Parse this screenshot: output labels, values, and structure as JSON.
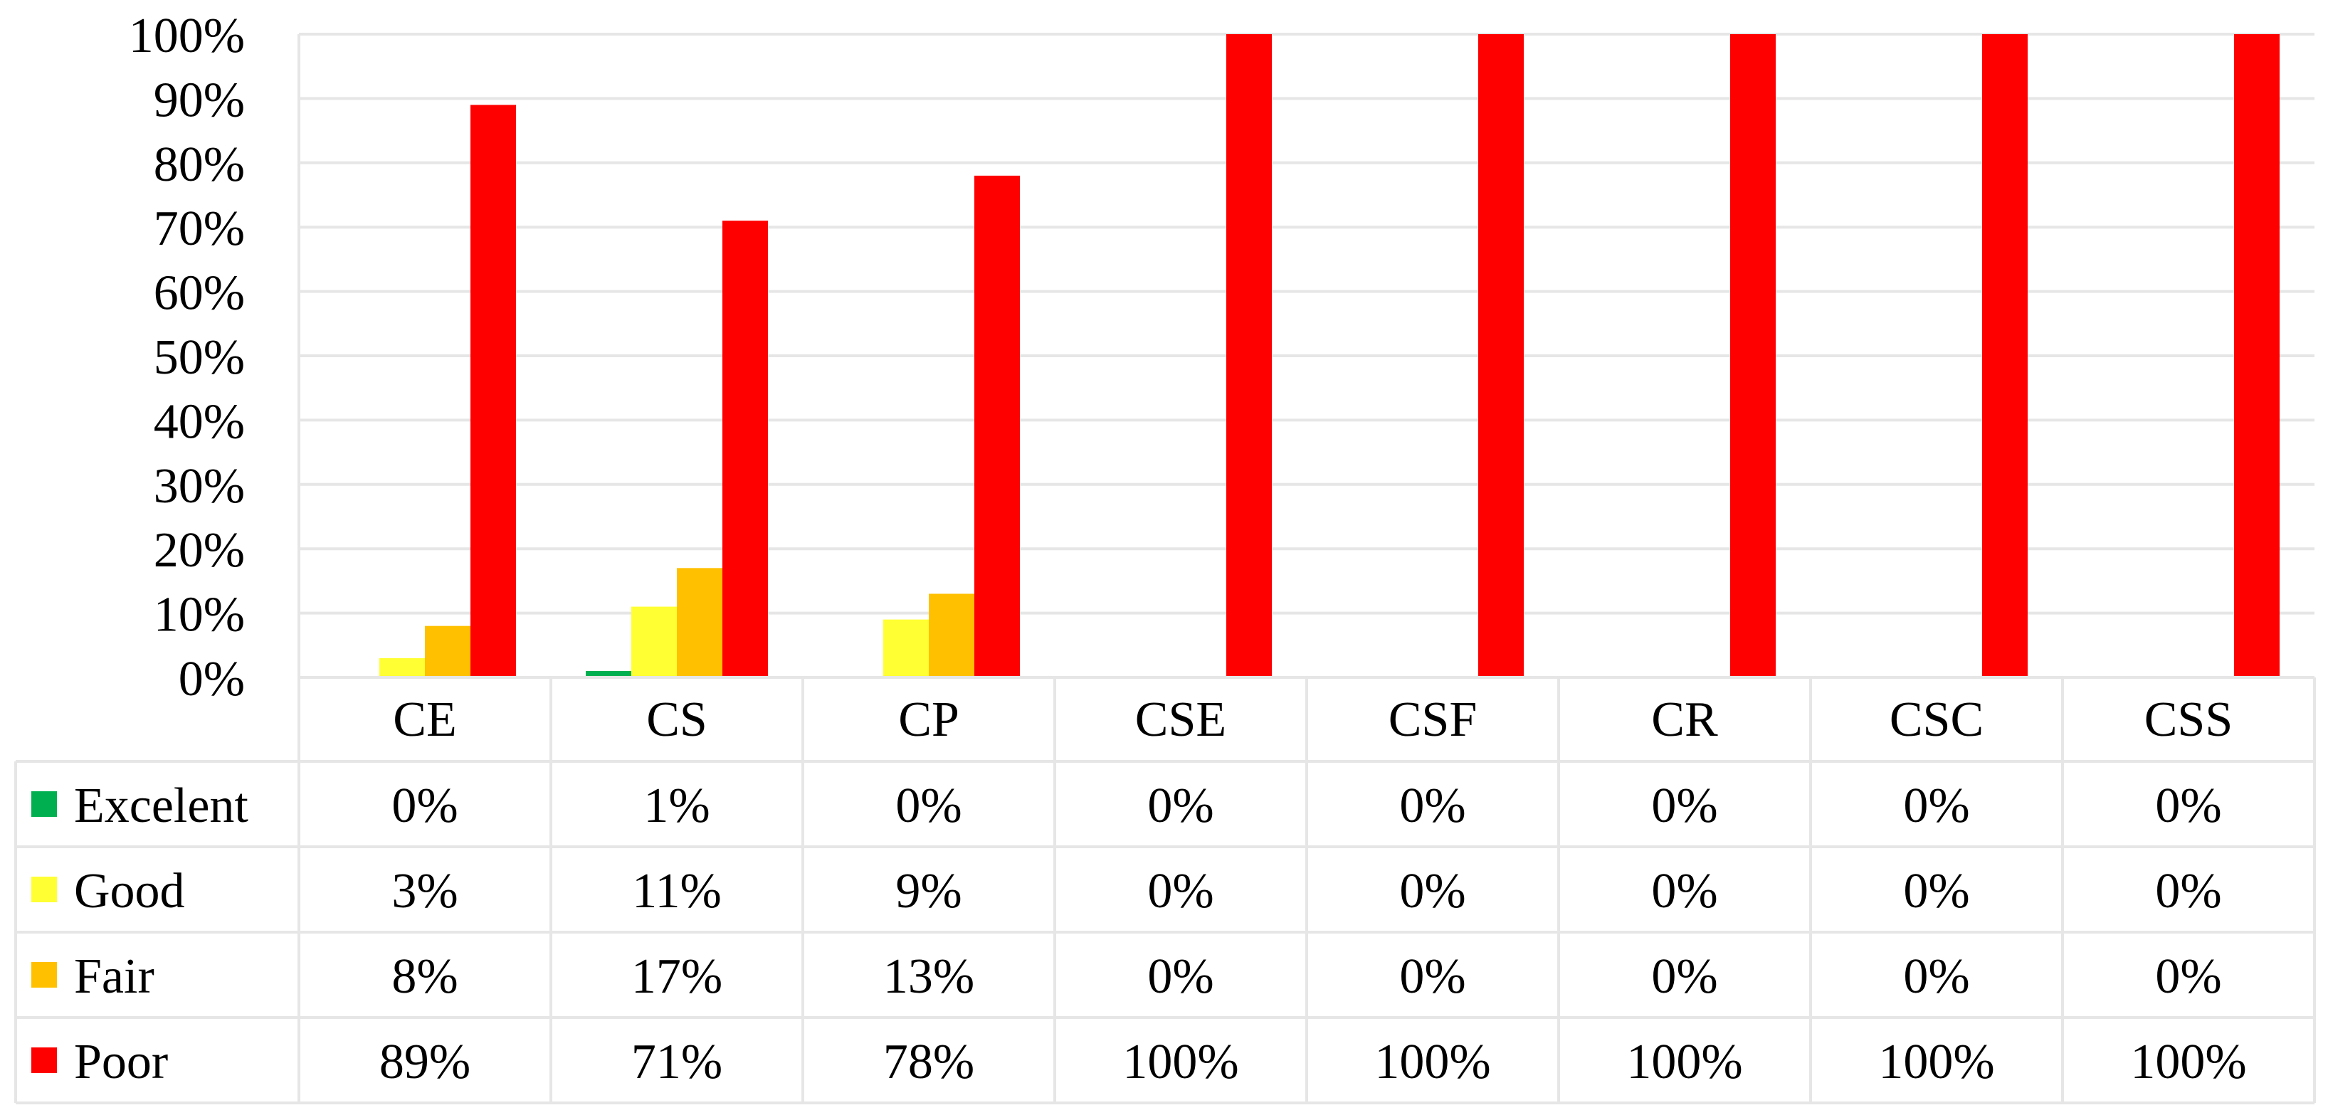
{
  "chart_data": {
    "type": "bar",
    "categories": [
      "CE",
      "CS",
      "CP",
      "CSE",
      "CSF",
      "CR",
      "CSC",
      "CSS"
    ],
    "series": [
      {
        "name": "Excelent",
        "color": "#00b050",
        "values": [
          0,
          1,
          0,
          0,
          0,
          0,
          0,
          0
        ],
        "labels": [
          "0%",
          "1%",
          "0%",
          "0%",
          "0%",
          "0%",
          "0%",
          "0%"
        ]
      },
      {
        "name": "Good",
        "color": "#ffff33",
        "values": [
          3,
          11,
          9,
          0,
          0,
          0,
          0,
          0
        ],
        "labels": [
          "3%",
          "11%",
          "9%",
          "0%",
          "0%",
          "0%",
          "0%",
          "0%"
        ]
      },
      {
        "name": "Fair",
        "color": "#ffc000",
        "values": [
          8,
          17,
          13,
          0,
          0,
          0,
          0,
          0
        ],
        "labels": [
          "8%",
          "17%",
          "13%",
          "0%",
          "0%",
          "0%",
          "0%",
          "0%"
        ]
      },
      {
        "name": "Poor",
        "color": "#ff0000",
        "values": [
          89,
          71,
          78,
          100,
          100,
          100,
          100,
          100
        ],
        "labels": [
          "89%",
          "71%",
          "78%",
          "100%",
          "100%",
          "100%",
          "100%",
          "100%"
        ]
      }
    ],
    "ylim": [
      0,
      100
    ],
    "yticks": [
      "0%",
      "10%",
      "20%",
      "30%",
      "40%",
      "50%",
      "60%",
      "70%",
      "80%",
      "90%",
      "100%"
    ],
    "grid": true,
    "legend": "data-table"
  }
}
